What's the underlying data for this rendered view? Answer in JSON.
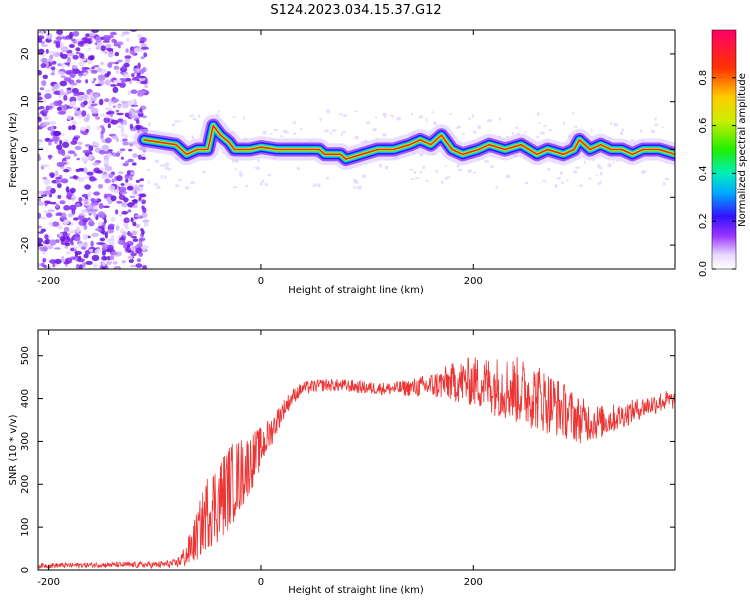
{
  "title": "S124.2023.034.15.37.G12",
  "chart_data": [
    {
      "type": "heatmap",
      "xlabel": "Height of straight line (km)",
      "ylabel": "Frequency (Hz)",
      "xlim": [
        -210,
        390
      ],
      "ylim": [
        -25,
        25
      ],
      "x_ticks": [
        -200,
        0,
        200
      ],
      "y_ticks": [
        -20,
        -10,
        0,
        10,
        20
      ],
      "colorbar": {
        "label": "Normalized spectral amplitude",
        "range": [
          0,
          1
        ],
        "ticks": [
          "0.0",
          "0.2",
          "0.4",
          "0.6",
          "0.8"
        ]
      },
      "noise_region_x": [
        -210,
        -108
      ],
      "ridge": [
        {
          "x": -110,
          "y": 2
        },
        {
          "x": -95,
          "y": 1.5
        },
        {
          "x": -80,
          "y": 1
        },
        {
          "x": -70,
          "y": -1
        },
        {
          "x": -60,
          "y": 0
        },
        {
          "x": -50,
          "y": 0
        },
        {
          "x": -45,
          "y": 5
        },
        {
          "x": -38,
          "y": 3
        },
        {
          "x": -30,
          "y": 1.5
        },
        {
          "x": -25,
          "y": 0
        },
        {
          "x": -10,
          "y": 0
        },
        {
          "x": 0,
          "y": 0.5
        },
        {
          "x": 15,
          "y": 0
        },
        {
          "x": 40,
          "y": 0
        },
        {
          "x": 55,
          "y": 0
        },
        {
          "x": 60,
          "y": -1
        },
        {
          "x": 75,
          "y": -1
        },
        {
          "x": 80,
          "y": -2
        },
        {
          "x": 95,
          "y": -1
        },
        {
          "x": 110,
          "y": 0
        },
        {
          "x": 125,
          "y": 0
        },
        {
          "x": 140,
          "y": 1
        },
        {
          "x": 150,
          "y": 2
        },
        {
          "x": 160,
          "y": 1
        },
        {
          "x": 170,
          "y": 3
        },
        {
          "x": 180,
          "y": 0
        },
        {
          "x": 190,
          "y": -1
        },
        {
          "x": 205,
          "y": 0
        },
        {
          "x": 215,
          "y": 1
        },
        {
          "x": 230,
          "y": 0
        },
        {
          "x": 245,
          "y": 1
        },
        {
          "x": 260,
          "y": -1
        },
        {
          "x": 270,
          "y": 0
        },
        {
          "x": 285,
          "y": -1
        },
        {
          "x": 295,
          "y": 0
        },
        {
          "x": 300,
          "y": 2
        },
        {
          "x": 310,
          "y": 0
        },
        {
          "x": 320,
          "y": 1
        },
        {
          "x": 330,
          "y": 0
        },
        {
          "x": 340,
          "y": 0
        },
        {
          "x": 350,
          "y": -1
        },
        {
          "x": 360,
          "y": 0
        },
        {
          "x": 375,
          "y": 0
        },
        {
          "x": 390,
          "y": -1
        }
      ]
    },
    {
      "type": "line",
      "xlabel": "Height of straight line (km)",
      "ylabel": "SNR (10 * v/v)",
      "xlim": [
        -210,
        390
      ],
      "ylim": [
        0,
        560
      ],
      "x_ticks": [
        -200,
        0,
        200
      ],
      "y_ticks": [
        0,
        100,
        200,
        300,
        400,
        500
      ],
      "series": [
        {
          "color": "#ee3333",
          "envelope": [
            {
              "x": -210,
              "y": 10,
              "spread": 6
            },
            {
              "x": -150,
              "y": 12,
              "spread": 6
            },
            {
              "x": -100,
              "y": 12,
              "spread": 8
            },
            {
              "x": -80,
              "y": 15,
              "spread": 10
            },
            {
              "x": -70,
              "y": 35,
              "spread": 30
            },
            {
              "x": -60,
              "y": 80,
              "spread": 60
            },
            {
              "x": -50,
              "y": 140,
              "spread": 90
            },
            {
              "x": -40,
              "y": 160,
              "spread": 100
            },
            {
              "x": -30,
              "y": 195,
              "spread": 100
            },
            {
              "x": -20,
              "y": 220,
              "spread": 90
            },
            {
              "x": -10,
              "y": 250,
              "spread": 70
            },
            {
              "x": 0,
              "y": 285,
              "spread": 50
            },
            {
              "x": 10,
              "y": 325,
              "spread": 35
            },
            {
              "x": 20,
              "y": 370,
              "spread": 25
            },
            {
              "x": 30,
              "y": 405,
              "spread": 18
            },
            {
              "x": 40,
              "y": 425,
              "spread": 15
            },
            {
              "x": 60,
              "y": 432,
              "spread": 15
            },
            {
              "x": 80,
              "y": 430,
              "spread": 15
            },
            {
              "x": 100,
              "y": 425,
              "spread": 15
            },
            {
              "x": 120,
              "y": 423,
              "spread": 15
            },
            {
              "x": 140,
              "y": 425,
              "spread": 20
            },
            {
              "x": 160,
              "y": 430,
              "spread": 30
            },
            {
              "x": 180,
              "y": 438,
              "spread": 45
            },
            {
              "x": 200,
              "y": 440,
              "spread": 60
            },
            {
              "x": 220,
              "y": 430,
              "spread": 70
            },
            {
              "x": 240,
              "y": 420,
              "spread": 80
            },
            {
              "x": 260,
              "y": 405,
              "spread": 80
            },
            {
              "x": 280,
              "y": 380,
              "spread": 70
            },
            {
              "x": 300,
              "y": 350,
              "spread": 55
            },
            {
              "x": 320,
              "y": 345,
              "spread": 40
            },
            {
              "x": 340,
              "y": 360,
              "spread": 30
            },
            {
              "x": 360,
              "y": 380,
              "spread": 25
            },
            {
              "x": 380,
              "y": 395,
              "spread": 25
            },
            {
              "x": 390,
              "y": 395,
              "spread": 20
            }
          ]
        }
      ]
    }
  ]
}
